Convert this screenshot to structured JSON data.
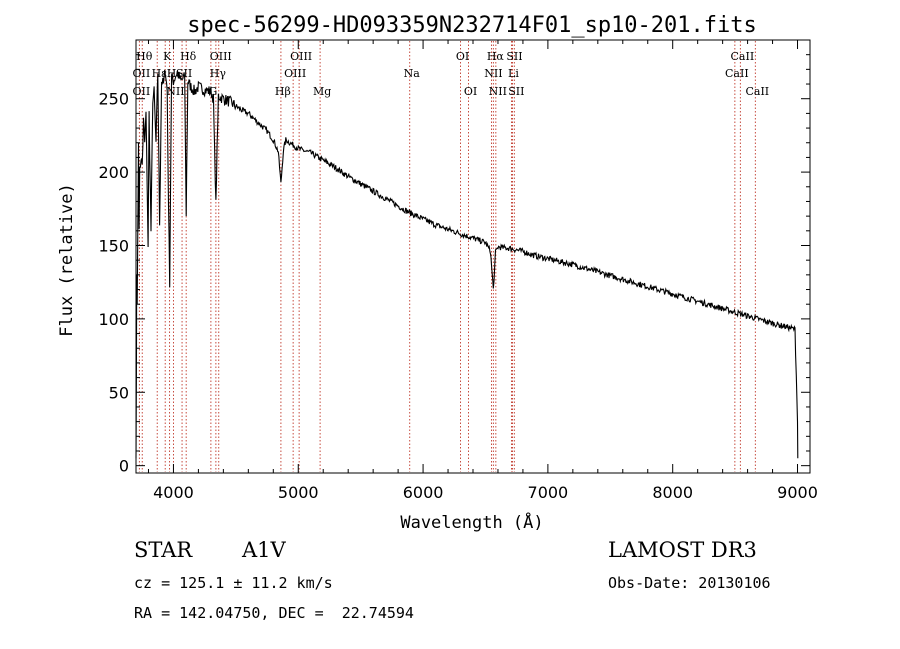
{
  "chart_data": {
    "type": "line",
    "title": "spec-56299-HD093359N232714F01_sp10-201.fits",
    "xlabel": "Wavelength (Å)",
    "ylabel": "Flux (relative)",
    "xlim": [
      3700,
      9100
    ],
    "ylim": [
      -5,
      290
    ],
    "xticks": [
      4000,
      5000,
      6000,
      7000,
      8000,
      9000
    ],
    "yticks": [
      0,
      50,
      100,
      150,
      200,
      250
    ],
    "grid": false,
    "series": [
      {
        "x": [
          3700,
          3703,
          3706,
          3710,
          3715,
          3720,
          3725,
          3730,
          3740,
          3750,
          3760,
          3770,
          3780,
          3790,
          3797,
          3805,
          3820,
          3835,
          3845,
          3860,
          3875,
          3889,
          3905,
          3920,
          3935,
          3950,
          3960,
          3970,
          3985,
          4000,
          4030,
          4060,
          4090,
          4102,
          4115,
          4140,
          4170,
          4200,
          4250,
          4300,
          4320,
          4340,
          4360,
          4400,
          4450,
          4500,
          4550,
          4600,
          4650,
          4700,
          4750,
          4800,
          4840,
          4861,
          4880,
          4900,
          4950,
          5000,
          5100,
          5200,
          5300,
          5400,
          5500,
          5600,
          5700,
          5800,
          5900,
          6000,
          6100,
          6200,
          6300,
          6400,
          6500,
          6540,
          6563,
          6580,
          6600,
          6700,
          6800,
          6900,
          7000,
          7200,
          7400,
          7600,
          7800,
          8000,
          8200,
          8400,
          8600,
          8800,
          8980,
          9000,
          9002
        ],
        "y": [
          5,
          60,
          130,
          110,
          170,
          220,
          165,
          200,
          210,
          205,
          235,
          220,
          240,
          190,
          150,
          240,
          160,
          250,
          255,
          220,
          268,
          165,
          262,
          260,
          270,
          255,
          180,
          125,
          265,
          262,
          268,
          262,
          265,
          172,
          262,
          258,
          255,
          258,
          256,
          255,
          250,
          178,
          252,
          250,
          248,
          245,
          242,
          240,
          236,
          232,
          228,
          222,
          214,
          192,
          214,
          222,
          219,
          216,
          213,
          208,
          203,
          197,
          192,
          187,
          182,
          177,
          172,
          168,
          164,
          161,
          158,
          155,
          152,
          146,
          120,
          145,
          149,
          148,
          146,
          143,
          141,
          137,
          132,
          127,
          122,
          117,
          112,
          107,
          102,
          97,
          93,
          30,
          5
        ]
      }
    ],
    "lines": [
      {
        "label": "Hθ",
        "wl": 3750,
        "row": 0
      },
      {
        "label": "OII",
        "wl": 3727,
        "row": 1
      },
      {
        "label": "OII",
        "wl": 3727,
        "row": 2
      },
      {
        "label": "Hε",
        "wl": 3870,
        "row": 1
      },
      {
        "label": "K",
        "wl": 3934,
        "row": 0
      },
      {
        "label": "H",
        "wl": 3969,
        "row": 1
      },
      {
        "label": "NII",
        "wl": 4000,
        "row": 2
      },
      {
        "label": "SII",
        "wl": 4069,
        "row": 1
      },
      {
        "label": "Hδ",
        "wl": 4102,
        "row": 0
      },
      {
        "label": "G",
        "wl": 4300,
        "row": 2
      },
      {
        "label": "OIII",
        "wl": 4363,
        "row": 0
      },
      {
        "label": "Hγ",
        "wl": 4340,
        "row": 1
      },
      {
        "label": "Hβ",
        "wl": 4861,
        "row": 2
      },
      {
        "label": "OIII",
        "wl": 4959,
        "row": 1
      },
      {
        "label": "OIII",
        "wl": 5007,
        "row": 0
      },
      {
        "label": "Mg",
        "wl": 5175,
        "row": 2
      },
      {
        "label": "Na",
        "wl": 5893,
        "row": 1
      },
      {
        "label": "OI",
        "wl": 6300,
        "row": 0
      },
      {
        "label": "OI",
        "wl": 6364,
        "row": 2
      },
      {
        "label": "NII",
        "wl": 6548,
        "row": 1
      },
      {
        "label": "Hα",
        "wl": 6563,
        "row": 0
      },
      {
        "label": "NII",
        "wl": 6583,
        "row": 2
      },
      {
        "label": "SII",
        "wl": 6716,
        "row": 0
      },
      {
        "label": "Li",
        "wl": 6708,
        "row": 1
      },
      {
        "label": "SII",
        "wl": 6731,
        "row": 2
      },
      {
        "label": "CaII",
        "wl": 8498,
        "row": 1
      },
      {
        "label": "CaII",
        "wl": 8542,
        "row": 0
      },
      {
        "label": "CaII",
        "wl": 8662,
        "row": 2
      }
    ]
  },
  "info": {
    "object_class": "STAR",
    "subclass": "A1V",
    "survey": "LAMOST DR3",
    "cz": "cz = 125.1 ± 11.2 km/s",
    "obs_date": "Obs-Date: 20130106",
    "coords": "RA = 142.04750, DEC =  22.74594"
  },
  "colors": {
    "line_marker": "#c0392b",
    "spectrum": "#000000"
  }
}
